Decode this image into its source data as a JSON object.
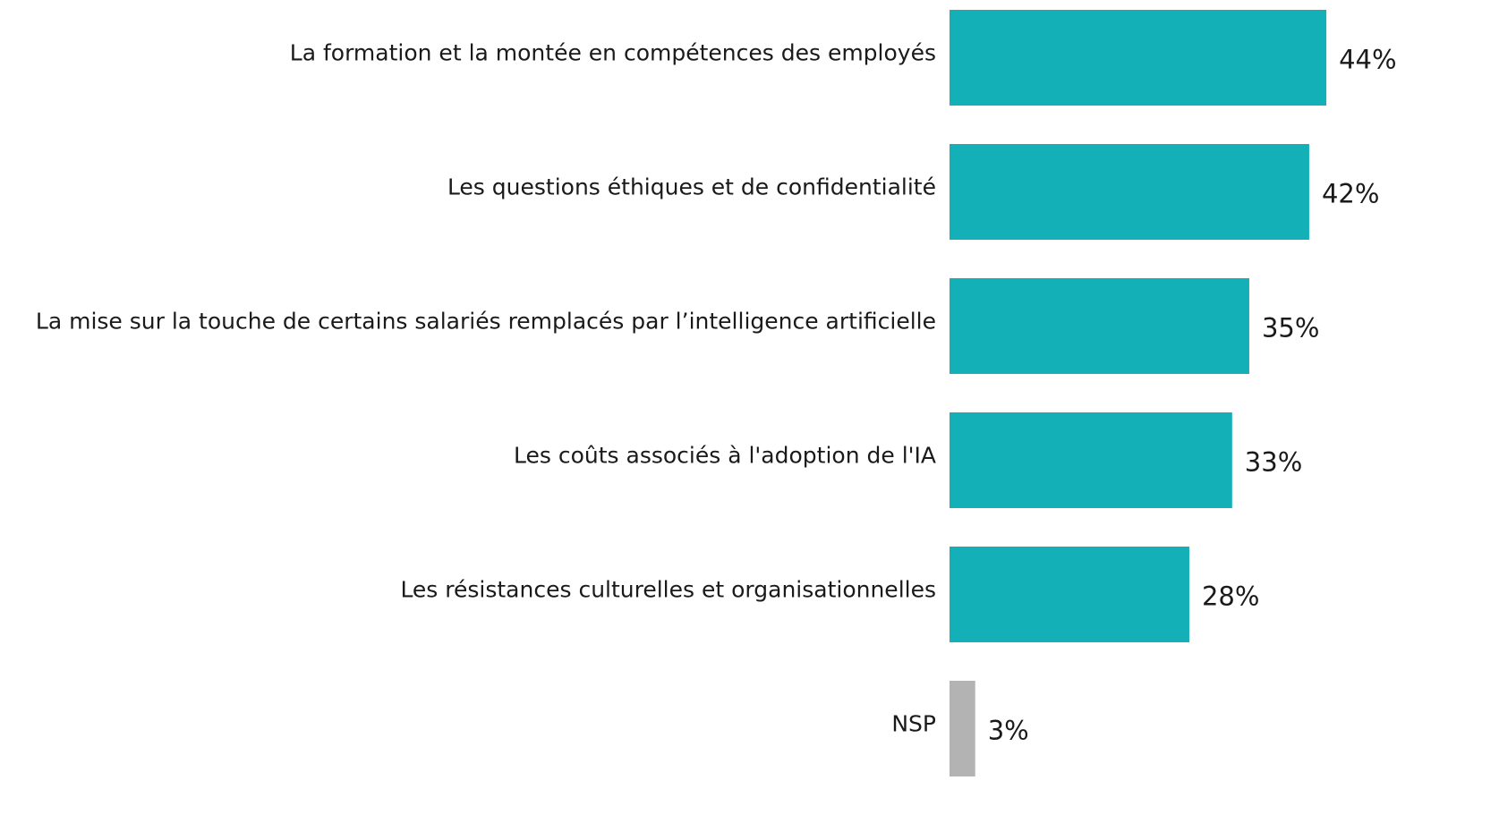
{
  "chart_data": {
    "type": "bar",
    "orientation": "horizontal",
    "categories": [
      "La formation et la montée en compétences des employés",
      "Les questions éthiques et de confidentialité",
      "La mise sur la touche de certains salariés remplacés par l’intelligence artificielle",
      "Les coûts associés à l'adoption de l'IA",
      "Les résistances culturelles et organisationnelles",
      "NSP"
    ],
    "values": [
      44,
      42,
      35,
      33,
      28,
      3
    ],
    "value_labels": [
      "44%",
      "42%",
      "35%",
      "33%",
      "28%",
      "3%"
    ],
    "colors": [
      "#13b0b8",
      "#13b0b8",
      "#13b0b8",
      "#13b0b8",
      "#13b0b8",
      "#b3b3b3"
    ]
  }
}
